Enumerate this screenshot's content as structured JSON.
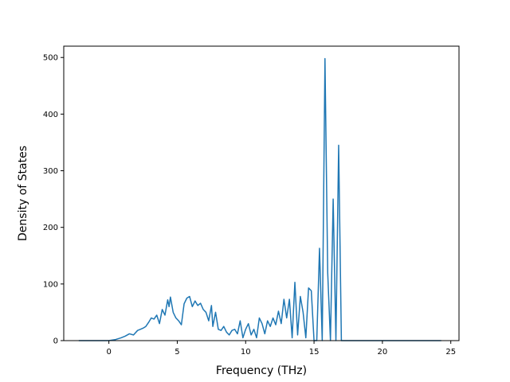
{
  "chart_data": {
    "type": "line",
    "title": "",
    "xlabel": "Frequency (THz)",
    "ylabel": "Density of States",
    "xlim": [
      -3.3,
      25.6
    ],
    "ylim": [
      0,
      520
    ],
    "xticks": [
      0,
      5,
      10,
      15,
      20,
      25
    ],
    "xtick_labels": [
      "0",
      "5",
      "10",
      "15",
      "20",
      "25"
    ],
    "yticks": [
      0,
      100,
      200,
      300,
      400,
      500
    ],
    "ytick_labels": [
      "0",
      "100",
      "200",
      "300",
      "400",
      "500"
    ],
    "grid": false,
    "legend": "none",
    "line_color": "#1f77b4",
    "series": [
      {
        "x": [
          -2.2,
          -1.0,
          0.0,
          0.5,
          0.9,
          1.2,
          1.5,
          1.8,
          2.1,
          2.3,
          2.5,
          2.7,
          2.9,
          3.1,
          3.3,
          3.5,
          3.7,
          3.9,
          4.1,
          4.3,
          4.4,
          4.5,
          4.7,
          4.9,
          5.1,
          5.3,
          5.5,
          5.7,
          5.9,
          6.1,
          6.3,
          6.5,
          6.7,
          6.9,
          7.1,
          7.3,
          7.5,
          7.6,
          7.8,
          8.0,
          8.2,
          8.4,
          8.6,
          8.8,
          9.0,
          9.2,
          9.4,
          9.6,
          9.8,
          10.0,
          10.2,
          10.4,
          10.6,
          10.8,
          11.0,
          11.2,
          11.4,
          11.6,
          11.8,
          12.0,
          12.2,
          12.4,
          12.6,
          12.8,
          13.0,
          13.2,
          13.4,
          13.6,
          13.8,
          14.0,
          14.2,
          14.4,
          14.6,
          14.8,
          15.0,
          15.2,
          15.4,
          15.6,
          15.8,
          16.0,
          16.2,
          16.4,
          16.6,
          16.8,
          17.0,
          17.2,
          18.0,
          20.0,
          22.0,
          24.3
        ],
        "y": [
          0,
          0,
          0,
          2,
          5,
          8,
          12,
          10,
          18,
          20,
          22,
          25,
          32,
          40,
          38,
          45,
          30,
          55,
          45,
          72,
          60,
          77,
          50,
          40,
          35,
          28,
          65,
          75,
          78,
          60,
          70,
          62,
          66,
          55,
          50,
          35,
          62,
          25,
          50,
          20,
          18,
          25,
          15,
          10,
          18,
          20,
          12,
          35,
          5,
          20,
          30,
          10,
          20,
          5,
          40,
          30,
          12,
          35,
          25,
          40,
          28,
          52,
          30,
          73,
          40,
          73,
          5,
          103,
          10,
          78,
          50,
          5,
          93,
          88,
          0,
          0,
          163,
          0,
          498,
          120,
          0,
          250,
          0,
          345,
          0,
          0,
          0,
          0,
          0,
          0
        ]
      }
    ]
  }
}
